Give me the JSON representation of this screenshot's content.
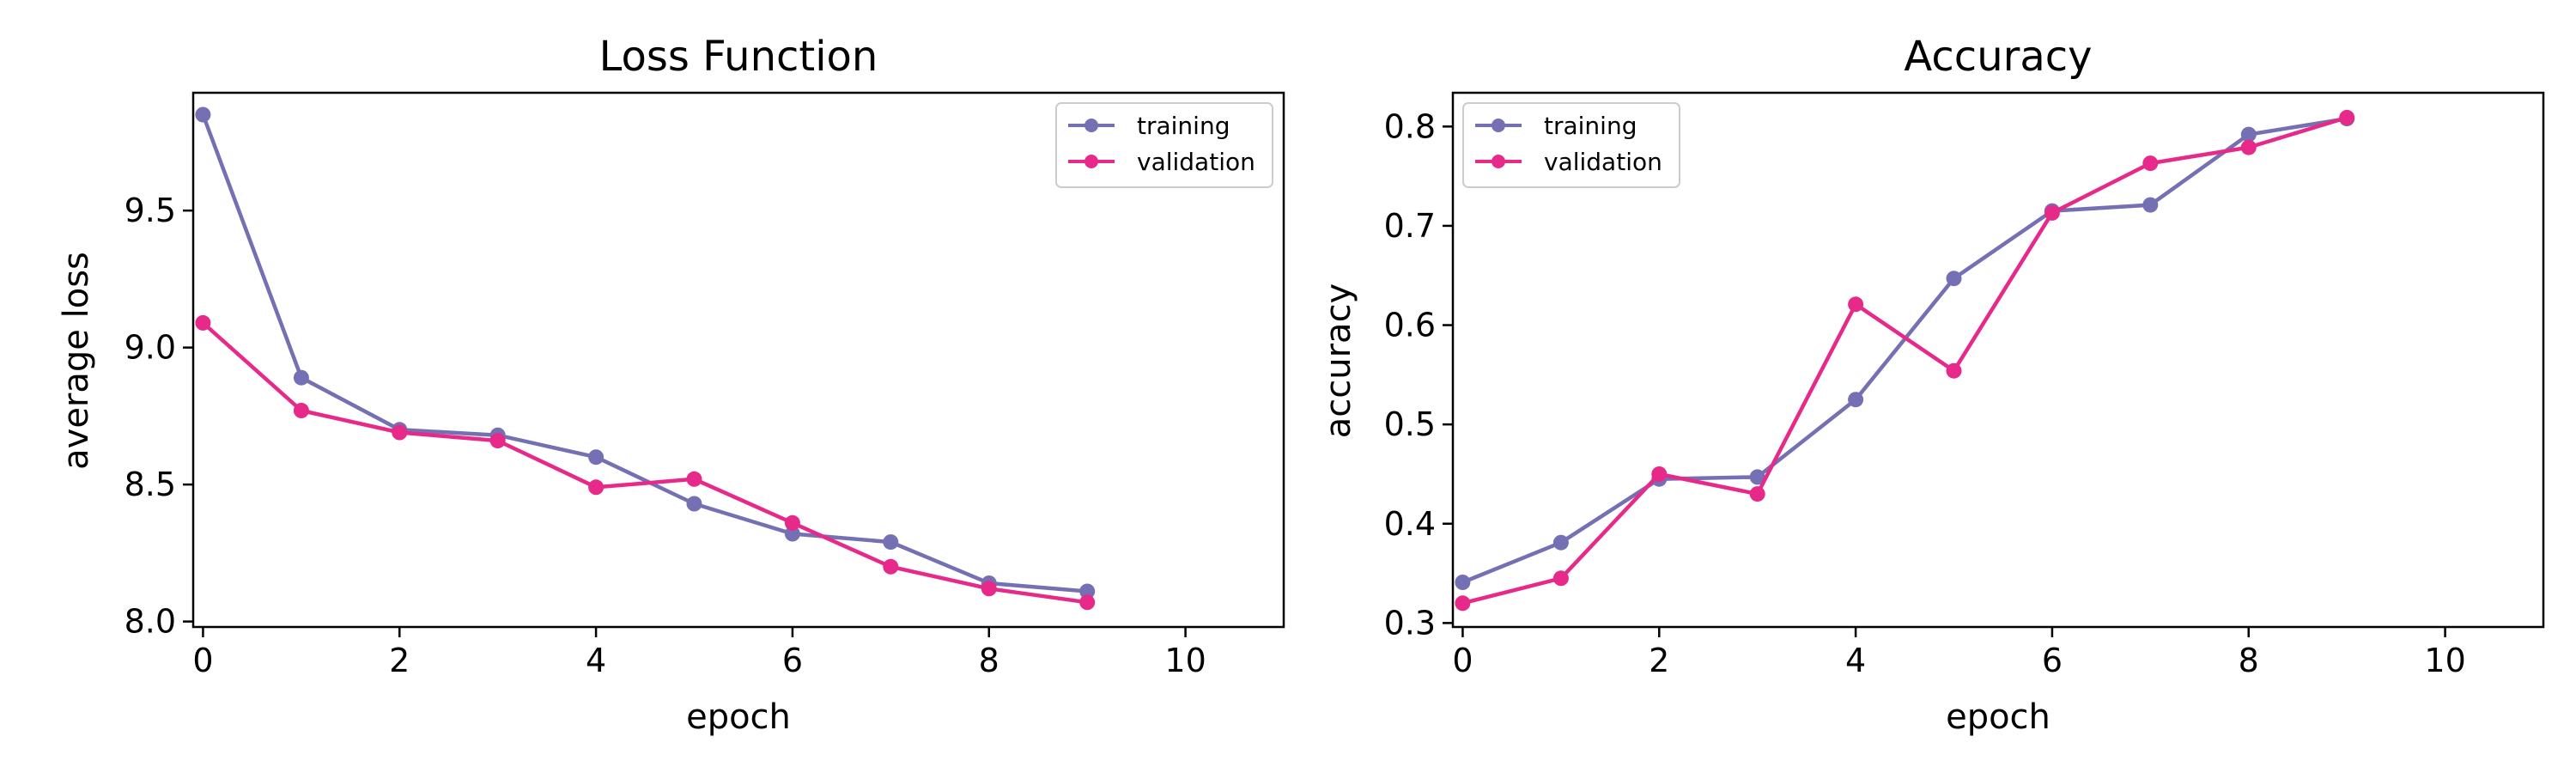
{
  "colors": {
    "training": "#7570b3",
    "validation": "#e7298a",
    "axis": "#000000",
    "background": "#ffffff"
  },
  "chart_data": [
    {
      "type": "line",
      "title": "Loss Function",
      "xlabel": "epoch",
      "ylabel": "average loss",
      "xlim": [
        -0.1,
        11
      ],
      "ylim": [
        7.98,
        9.93
      ],
      "xticks": [
        0,
        2,
        4,
        6,
        8,
        10
      ],
      "xtick_labels": [
        "0",
        "2",
        "4",
        "6",
        "8",
        "10"
      ],
      "yticks": [
        8.0,
        8.5,
        9.0,
        9.5
      ],
      "ytick_labels": [
        "8.0",
        "8.5",
        "9.0",
        "9.5"
      ],
      "grid": false,
      "legend_position": "top-right",
      "x": [
        0,
        1,
        2,
        3,
        4,
        5,
        6,
        7,
        8,
        9
      ],
      "series": [
        {
          "name": "training",
          "color": "#7570b3",
          "values": [
            9.85,
            8.89,
            8.7,
            8.68,
            8.6,
            8.43,
            8.32,
            8.29,
            8.14,
            8.11
          ]
        },
        {
          "name": "validation",
          "color": "#e7298a",
          "values": [
            9.09,
            8.77,
            8.69,
            8.66,
            8.49,
            8.52,
            8.36,
            8.2,
            8.12,
            8.07
          ]
        }
      ]
    },
    {
      "type": "line",
      "title": "Accuracy",
      "xlabel": "epoch",
      "ylabel": "accuracy",
      "xlim": [
        -0.1,
        11
      ],
      "ylim": [
        0.296,
        0.834
      ],
      "xticks": [
        0,
        2,
        4,
        6,
        8,
        10
      ],
      "xtick_labels": [
        "0",
        "2",
        "4",
        "6",
        "8",
        "10"
      ],
      "yticks": [
        0.3,
        0.4,
        0.5,
        0.6,
        0.7,
        0.8
      ],
      "ytick_labels": [
        "0.3",
        "0.4",
        "0.5",
        "0.6",
        "0.7",
        "0.8"
      ],
      "grid": false,
      "legend_position": "top-left",
      "x": [
        0,
        1,
        2,
        3,
        4,
        5,
        6,
        7,
        8,
        9
      ],
      "series": [
        {
          "name": "training",
          "color": "#7570b3",
          "values": [
            0.341,
            0.381,
            0.445,
            0.447,
            0.525,
            0.647,
            0.715,
            0.721,
            0.792,
            0.808
          ]
        },
        {
          "name": "validation",
          "color": "#e7298a",
          "values": [
            0.32,
            0.345,
            0.45,
            0.43,
            0.621,
            0.554,
            0.713,
            0.763,
            0.779,
            0.809
          ]
        }
      ]
    }
  ]
}
